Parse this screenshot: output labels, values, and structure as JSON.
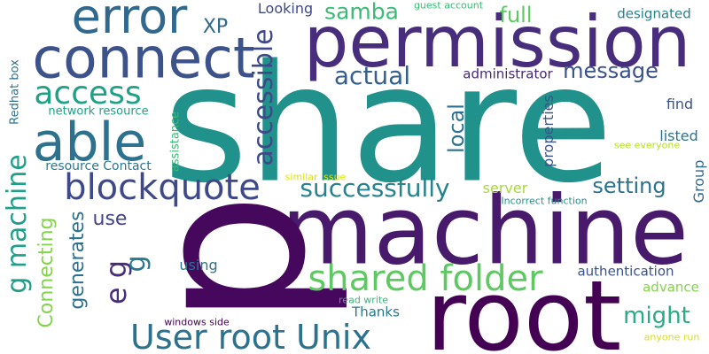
{
  "words": [
    {
      "text": "share",
      "color": "#21918c",
      "orientation": "horizontal"
    },
    {
      "text": "root",
      "color": "#440154",
      "orientation": "horizontal"
    },
    {
      "text": "machine",
      "color": "#481a6c",
      "orientation": "horizontal"
    },
    {
      "text": "permission",
      "color": "#472d7b",
      "orientation": "horizontal"
    },
    {
      "text": "connect",
      "color": "#3b528b",
      "orientation": "horizontal"
    },
    {
      "text": "error",
      "color": "#31688e",
      "orientation": "horizontal"
    },
    {
      "text": "able",
      "color": "#2c728e",
      "orientation": "horizontal"
    },
    {
      "text": "p",
      "color": "#46085c",
      "orientation": "vertical"
    },
    {
      "text": "blockquote",
      "color": "#3e4989",
      "orientation": "horizontal"
    },
    {
      "text": "shared folder",
      "color": "#5ec962",
      "orientation": "horizontal"
    },
    {
      "text": "User root Unix",
      "color": "#2c728e",
      "orientation": "horizontal"
    },
    {
      "text": "access",
      "color": "#1fa188",
      "orientation": "horizontal"
    },
    {
      "text": "successfully",
      "color": "#26828e",
      "orientation": "horizontal"
    },
    {
      "text": "g machine",
      "color": "#1f9e89",
      "orientation": "vertical"
    },
    {
      "text": "accessible",
      "color": "#3e4989",
      "orientation": "vertical"
    },
    {
      "text": "e g",
      "color": "#472d7b",
      "orientation": "vertical"
    },
    {
      "text": "actual",
      "color": "#35608d",
      "orientation": "horizontal"
    },
    {
      "text": "message",
      "color": "#3b528b",
      "orientation": "horizontal"
    },
    {
      "text": "samba",
      "color": "#3bbb75",
      "orientation": "horizontal"
    },
    {
      "text": "full",
      "color": "#5ec962",
      "orientation": "horizontal"
    },
    {
      "text": "local",
      "color": "#2c728e",
      "orientation": "vertical"
    },
    {
      "text": "setting",
      "color": "#2c728e",
      "orientation": "horizontal"
    },
    {
      "text": "might",
      "color": "#26ad81",
      "orientation": "horizontal"
    },
    {
      "text": "Connecting",
      "color": "#84d44b",
      "orientation": "vertical"
    },
    {
      "text": "generates",
      "color": "#2c728e",
      "orientation": "vertical"
    },
    {
      "text": "use",
      "color": "#414487",
      "orientation": "horizontal"
    },
    {
      "text": "XP",
      "color": "#31688e",
      "orientation": "horizontal"
    },
    {
      "text": "g",
      "color": "#2a788e",
      "orientation": "vertical"
    },
    {
      "text": "Looking",
      "color": "#3e4989",
      "orientation": "horizontal"
    },
    {
      "text": "administrator",
      "color": "#482878",
      "orientation": "horizontal"
    },
    {
      "text": "find",
      "color": "#3b528b",
      "orientation": "horizontal"
    },
    {
      "text": "listed",
      "color": "#2c728e",
      "orientation": "horizontal"
    },
    {
      "text": "designated",
      "color": "#26828e",
      "orientation": "horizontal"
    },
    {
      "text": "properties",
      "color": "#3b528b",
      "orientation": "vertical"
    },
    {
      "text": "server",
      "color": "#a5db36",
      "orientation": "horizontal"
    },
    {
      "text": "using",
      "color": "#2c728e",
      "orientation": "horizontal"
    },
    {
      "text": "Thanks",
      "color": "#2a788e",
      "orientation": "horizontal"
    },
    {
      "text": "authentication",
      "color": "#3b528b",
      "orientation": "horizontal"
    },
    {
      "text": "advance",
      "color": "#84d44b",
      "orientation": "horizontal"
    },
    {
      "text": "Group",
      "color": "#31688e",
      "orientation": "vertical"
    },
    {
      "text": "network resource",
      "color": "#1fa188",
      "orientation": "horizontal"
    },
    {
      "text": "resource Contact",
      "color": "#2a788e",
      "orientation": "horizontal"
    },
    {
      "text": "Redhat box",
      "color": "#2c728e",
      "orientation": "vertical"
    },
    {
      "text": "assistance",
      "color": "#3bbb75",
      "orientation": "vertical"
    },
    {
      "text": "guest account",
      "color": "#3bbb75",
      "orientation": "horizontal"
    },
    {
      "text": "similar issue",
      "color": "#d8e219",
      "orientation": "horizontal"
    },
    {
      "text": "Incorrect function",
      "color": "#21918c",
      "orientation": "horizontal"
    },
    {
      "text": "see everyone",
      "color": "#b5de2b",
      "orientation": "horizontal"
    },
    {
      "text": "read write",
      "color": "#35b779",
      "orientation": "horizontal"
    },
    {
      "text": "windows side",
      "color": "#440154",
      "orientation": "horizontal"
    },
    {
      "text": "anyone run",
      "color": "#d8e219",
      "orientation": "horizontal"
    }
  ]
}
